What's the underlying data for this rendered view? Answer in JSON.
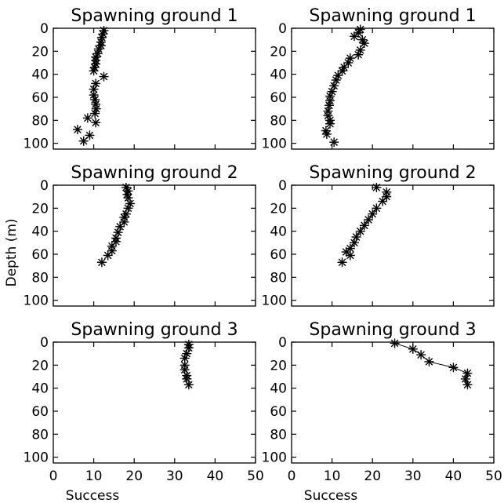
{
  "chart_data": {
    "type": "scatter",
    "layout": "3 rows x 2 columns of small-multiple profiles",
    "ylabel": "Depth (m)",
    "xlabel": "Success",
    "xlim": [
      0,
      50
    ],
    "ylim": [
      105,
      0
    ],
    "y_reversed": true,
    "xticks": [
      0,
      10,
      20,
      30,
      40,
      50
    ],
    "yticks": [
      0,
      20,
      40,
      60,
      80,
      100
    ],
    "marker": "asterisk",
    "color": "#000000",
    "panels": [
      {
        "title": "Spawning ground 1",
        "connect_line": false,
        "points": [
          [
            12.5,
            2
          ],
          [
            12.3,
            5
          ],
          [
            12,
            8
          ],
          [
            11.8,
            12
          ],
          [
            11.8,
            15
          ],
          [
            11.2,
            18
          ],
          [
            11,
            22
          ],
          [
            10.5,
            25
          ],
          [
            10.5,
            28
          ],
          [
            10.5,
            31
          ],
          [
            10.2,
            34
          ],
          [
            10,
            37
          ],
          [
            12.5,
            42
          ],
          [
            10.5,
            48
          ],
          [
            10,
            53
          ],
          [
            10,
            58
          ],
          [
            10.3,
            62
          ],
          [
            10.5,
            66
          ],
          [
            10.6,
            70
          ],
          [
            10.3,
            74
          ],
          [
            8.5,
            78
          ],
          [
            10.5,
            82
          ],
          [
            6,
            88
          ],
          [
            9,
            93
          ],
          [
            7.5,
            98
          ]
        ]
      },
      {
        "title": "Spawning ground 1",
        "connect_line": false,
        "points": [
          [
            17,
            1
          ],
          [
            16.5,
            4
          ],
          [
            15.5,
            7
          ],
          [
            17.5,
            10
          ],
          [
            18,
            13
          ],
          [
            17,
            19
          ],
          [
            16.5,
            23
          ],
          [
            14.5,
            26
          ],
          [
            14,
            30
          ],
          [
            13,
            34
          ],
          [
            12.5,
            37
          ],
          [
            11.5,
            41
          ],
          [
            11,
            45
          ],
          [
            10.5,
            50
          ],
          [
            10,
            55
          ],
          [
            9.5,
            59
          ],
          [
            9.5,
            63
          ],
          [
            9.3,
            67
          ],
          [
            9,
            72
          ],
          [
            9,
            76
          ],
          [
            9.5,
            80
          ],
          [
            9.5,
            83
          ],
          [
            8.5,
            89
          ],
          [
            8.7,
            92
          ],
          [
            10.5,
            99
          ]
        ]
      },
      {
        "title": "Spawning ground 2",
        "connect_line": false,
        "points": [
          [
            18,
            2
          ],
          [
            18.5,
            5
          ],
          [
            18.3,
            8
          ],
          [
            18.5,
            11
          ],
          [
            19,
            16
          ],
          [
            18.5,
            20
          ],
          [
            18,
            25
          ],
          [
            17.5,
            28
          ],
          [
            17.5,
            32
          ],
          [
            16.5,
            36
          ],
          [
            16,
            41
          ],
          [
            15.5,
            46
          ],
          [
            15.5,
            49
          ],
          [
            14.5,
            53
          ],
          [
            14.5,
            57
          ],
          [
            13.5,
            61
          ],
          [
            12,
            67
          ]
        ]
      },
      {
        "title": "Spawning ground 2",
        "connect_line": false,
        "points": [
          [
            21,
            2
          ],
          [
            23.5,
            6
          ],
          [
            23.5,
            10
          ],
          [
            22.5,
            14
          ],
          [
            21,
            20
          ],
          [
            20,
            25
          ],
          [
            19,
            30
          ],
          [
            18,
            35
          ],
          [
            17,
            40
          ],
          [
            16,
            45
          ],
          [
            15.5,
            50
          ],
          [
            14.5,
            55
          ],
          [
            13.5,
            58
          ],
          [
            14.5,
            61
          ],
          [
            12.5,
            67
          ]
        ]
      },
      {
        "title": "Spawning ground 3",
        "connect_line": false,
        "points": [
          [
            33.5,
            2
          ],
          [
            33.5,
            5
          ],
          [
            33,
            10
          ],
          [
            32.5,
            14
          ],
          [
            32.5,
            20
          ],
          [
            32.5,
            24
          ],
          [
            33,
            29
          ],
          [
            33,
            32
          ],
          [
            33.5,
            37
          ]
        ]
      },
      {
        "title": "Spawning ground 3",
        "connect_line": true,
        "points": [
          [
            25.5,
            1
          ],
          [
            30,
            6
          ],
          [
            32,
            11
          ],
          [
            34,
            17
          ],
          [
            40,
            22
          ],
          [
            43.5,
            27
          ],
          [
            43,
            32
          ],
          [
            43.5,
            37
          ]
        ]
      }
    ]
  }
}
